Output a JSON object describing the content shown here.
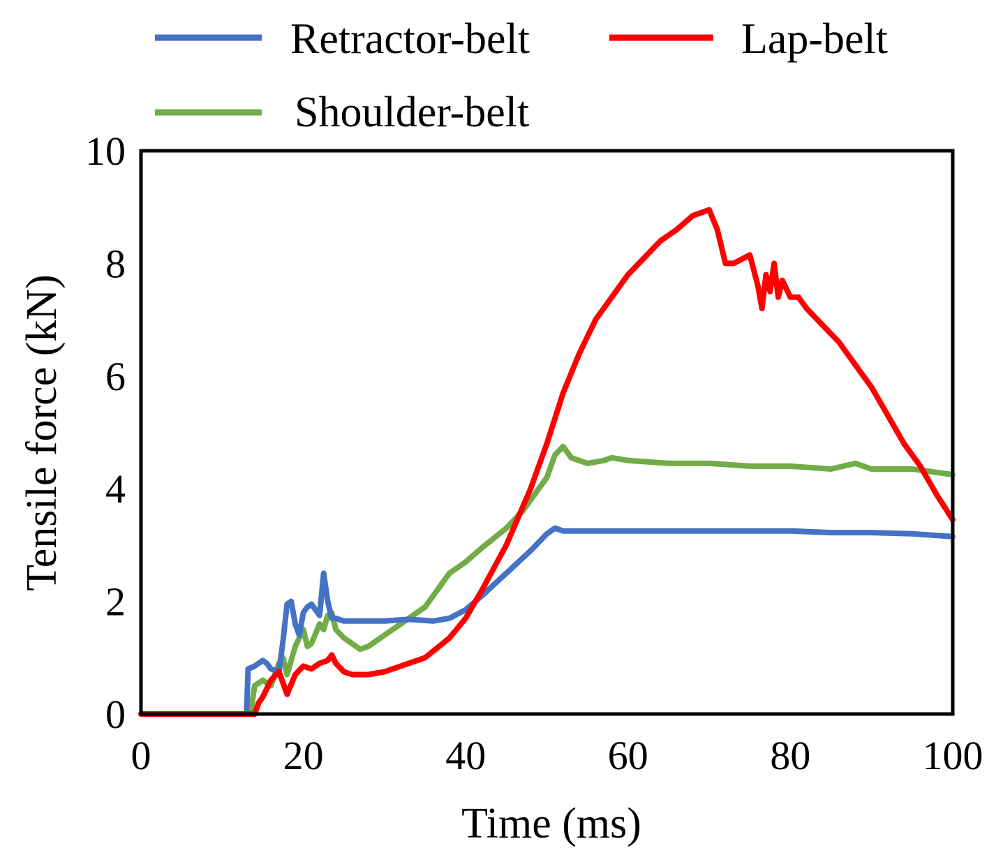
{
  "chart_data": {
    "type": "line",
    "xlabel": "Time (ms)",
    "ylabel": "Tensile force (kN)",
    "xlim": [
      0,
      100
    ],
    "ylim": [
      0,
      10
    ],
    "xticks": [
      "0",
      "20",
      "40",
      "60",
      "80",
      "100"
    ],
    "yticks": [
      "0",
      "2",
      "4",
      "6",
      "8",
      "10"
    ],
    "grid": false,
    "legend_position": "top",
    "series": [
      {
        "name": "Retractor-belt",
        "color": "#4472C4",
        "x": [
          0,
          13,
          13.2,
          14,
          15,
          15.5,
          16,
          17,
          17.5,
          18,
          18.5,
          19,
          19.5,
          20,
          20.5,
          21,
          22,
          22.5,
          23,
          23.5,
          24,
          25,
          27,
          30,
          33,
          36,
          38,
          40,
          42,
          45,
          48,
          50,
          51,
          52,
          55,
          60,
          65,
          70,
          75,
          80,
          85,
          90,
          95,
          100
        ],
        "y": [
          0,
          0,
          0.8,
          0.85,
          0.95,
          0.9,
          0.8,
          0.75,
          1.3,
          1.95,
          2.0,
          1.6,
          1.4,
          1.8,
          1.9,
          1.95,
          1.75,
          2.5,
          2.0,
          1.7,
          1.7,
          1.65,
          1.65,
          1.65,
          1.68,
          1.65,
          1.7,
          1.85,
          2.1,
          2.5,
          2.9,
          3.2,
          3.3,
          3.25,
          3.25,
          3.25,
          3.25,
          3.25,
          3.25,
          3.25,
          3.22,
          3.22,
          3.2,
          3.15
        ]
      },
      {
        "name": "Lap-belt",
        "color": "#FF0000",
        "x": [
          0,
          14,
          14.5,
          15,
          16,
          17,
          17.5,
          18,
          19,
          20,
          21,
          22,
          23,
          23.5,
          24,
          25,
          26,
          28,
          30,
          32,
          35,
          38,
          40,
          42,
          45,
          48,
          50,
          52,
          54,
          56,
          58,
          60,
          62,
          64,
          66,
          68,
          70,
          71,
          72,
          73,
          75,
          76,
          76.5,
          77,
          77.5,
          78,
          78.5,
          79,
          80,
          81,
          82,
          84,
          86,
          88,
          90,
          92,
          94,
          96,
          98,
          100
        ],
        "y": [
          0,
          0,
          0.2,
          0.3,
          0.6,
          0.75,
          0.55,
          0.35,
          0.7,
          0.85,
          0.8,
          0.9,
          0.95,
          1.05,
          0.9,
          0.75,
          0.7,
          0.7,
          0.75,
          0.85,
          1.0,
          1.35,
          1.7,
          2.2,
          3.0,
          4.0,
          4.8,
          5.7,
          6.4,
          7.0,
          7.4,
          7.8,
          8.1,
          8.4,
          8.6,
          8.85,
          8.95,
          8.6,
          8.0,
          8.0,
          8.15,
          7.6,
          7.2,
          7.8,
          7.5,
          8.0,
          7.4,
          7.7,
          7.4,
          7.4,
          7.2,
          6.9,
          6.6,
          6.2,
          5.8,
          5.3,
          4.8,
          4.4,
          3.9,
          3.45
        ]
      },
      {
        "name": "Shoulder-belt",
        "color": "#70AD47",
        "x": [
          0,
          13.5,
          14,
          15,
          16,
          17,
          17.5,
          18,
          19,
          20,
          20.5,
          21,
          22,
          22.5,
          23,
          23.5,
          24,
          25,
          26,
          27,
          28,
          30,
          32,
          35,
          37,
          38,
          40,
          42,
          45,
          47,
          50,
          51,
          52,
          53,
          55,
          57,
          58,
          60,
          65,
          70,
          75,
          80,
          85,
          88,
          90,
          95,
          100
        ],
        "y": [
          0,
          0,
          0.5,
          0.6,
          0.5,
          0.9,
          1.0,
          0.7,
          1.2,
          1.5,
          1.2,
          1.25,
          1.6,
          1.5,
          1.75,
          1.8,
          1.5,
          1.35,
          1.25,
          1.15,
          1.2,
          1.4,
          1.6,
          1.9,
          2.3,
          2.5,
          2.7,
          2.95,
          3.3,
          3.6,
          4.2,
          4.6,
          4.75,
          4.55,
          4.45,
          4.5,
          4.55,
          4.5,
          4.45,
          4.45,
          4.4,
          4.4,
          4.35,
          4.45,
          4.35,
          4.35,
          4.25
        ]
      }
    ]
  }
}
